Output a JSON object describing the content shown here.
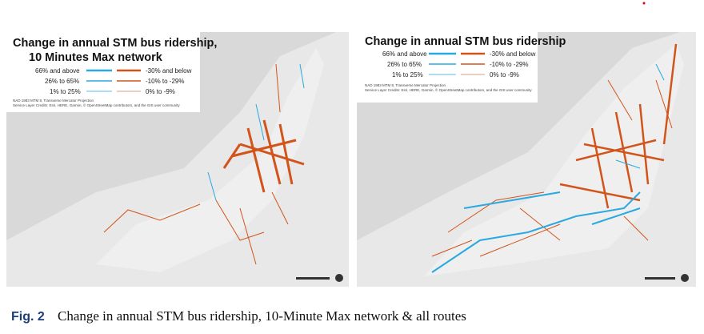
{
  "maps": [
    {
      "title_lines": [
        "Change in annual STM bus ridership,",
        "10 Minutes Max network"
      ],
      "legend": [
        [
          "66% and above",
          "-30% and below"
        ],
        [
          "26% to 65%",
          "-10% to -29%"
        ],
        [
          "1% to 25%",
          "0% to -9%"
        ]
      ],
      "credits": [
        "NAD 1983 MTM 8, Transverse Mercator Projection",
        "Service Layer Credits: Esri, HERE, Garmin, © OpenStreetMap contributors, and the GIS user community"
      ]
    },
    {
      "title_lines": [
        "Change in annual STM bus ridership"
      ],
      "legend": [
        [
          "66% and above",
          "-30% and below"
        ],
        [
          "26% to 65%",
          "-10% to -29%"
        ],
        [
          "1% to 25%",
          "0% to -9%"
        ]
      ],
      "credits": [
        "NAD 1983 MTM 8, Transverse Mercator Projection",
        "Service Layer Credits: Esri, HERE, Garmin, © OpenStreetMap contributors, and the GIS user community"
      ]
    }
  ],
  "caption": {
    "label": "Fig. 2",
    "text": "Change in annual STM bus ridership, 10-Minute Max network & all routes"
  }
}
